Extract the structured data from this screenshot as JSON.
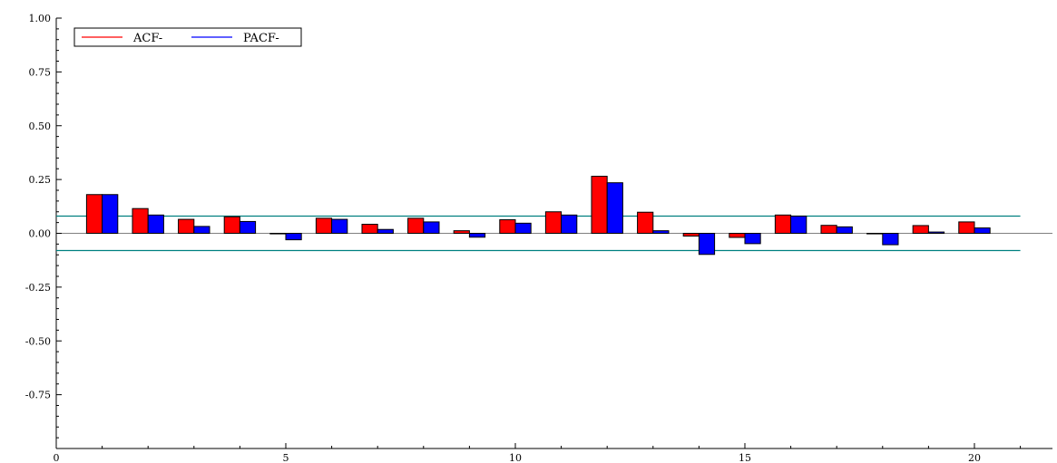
{
  "chart_data": {
    "type": "bar",
    "title": "",
    "xlabel": "",
    "ylabel": "",
    "xlim": [
      0,
      21.7
    ],
    "ylim": [
      -1.0,
      1.0
    ],
    "x_ticks": [
      0,
      5,
      10,
      15,
      20
    ],
    "y_ticks": [
      1.0,
      0.75,
      0.5,
      0.25,
      0.0,
      -0.25,
      -0.5,
      -0.75
    ],
    "x_tick_labels": [
      "0",
      "5",
      "10",
      "15",
      "20"
    ],
    "y_tick_labels": [
      "1.00",
      "0.75",
      "0.50",
      "0.25",
      "0.00",
      "-0.25",
      "-0.50",
      "-0.75"
    ],
    "lags": [
      1,
      2,
      3,
      4,
      5,
      6,
      7,
      8,
      9,
      10,
      11,
      12,
      13,
      14,
      15,
      16,
      17,
      18,
      19,
      20
    ],
    "series": [
      {
        "name": "ACF-",
        "color": "#ff0000",
        "values": [
          0.18,
          0.115,
          0.065,
          0.077,
          0.0,
          0.07,
          0.042,
          0.07,
          0.012,
          0.063,
          0.1,
          0.265,
          0.098,
          -0.013,
          -0.019,
          0.085,
          0.037,
          0.0,
          0.036,
          0.053
        ]
      },
      {
        "name": "PACF-",
        "color": "#0000ff",
        "values": [
          0.18,
          0.085,
          0.032,
          0.055,
          -0.03,
          0.065,
          0.018,
          0.053,
          -0.018,
          0.047,
          0.085,
          0.235,
          0.012,
          -0.098,
          -0.048,
          0.08,
          0.03,
          -0.053,
          0.006,
          0.025
        ]
      }
    ],
    "confidence_bands": [
      0.08,
      -0.08
    ],
    "band_color": "#008080",
    "zero_line": true,
    "grid": false,
    "legend_placement": "top-left"
  }
}
